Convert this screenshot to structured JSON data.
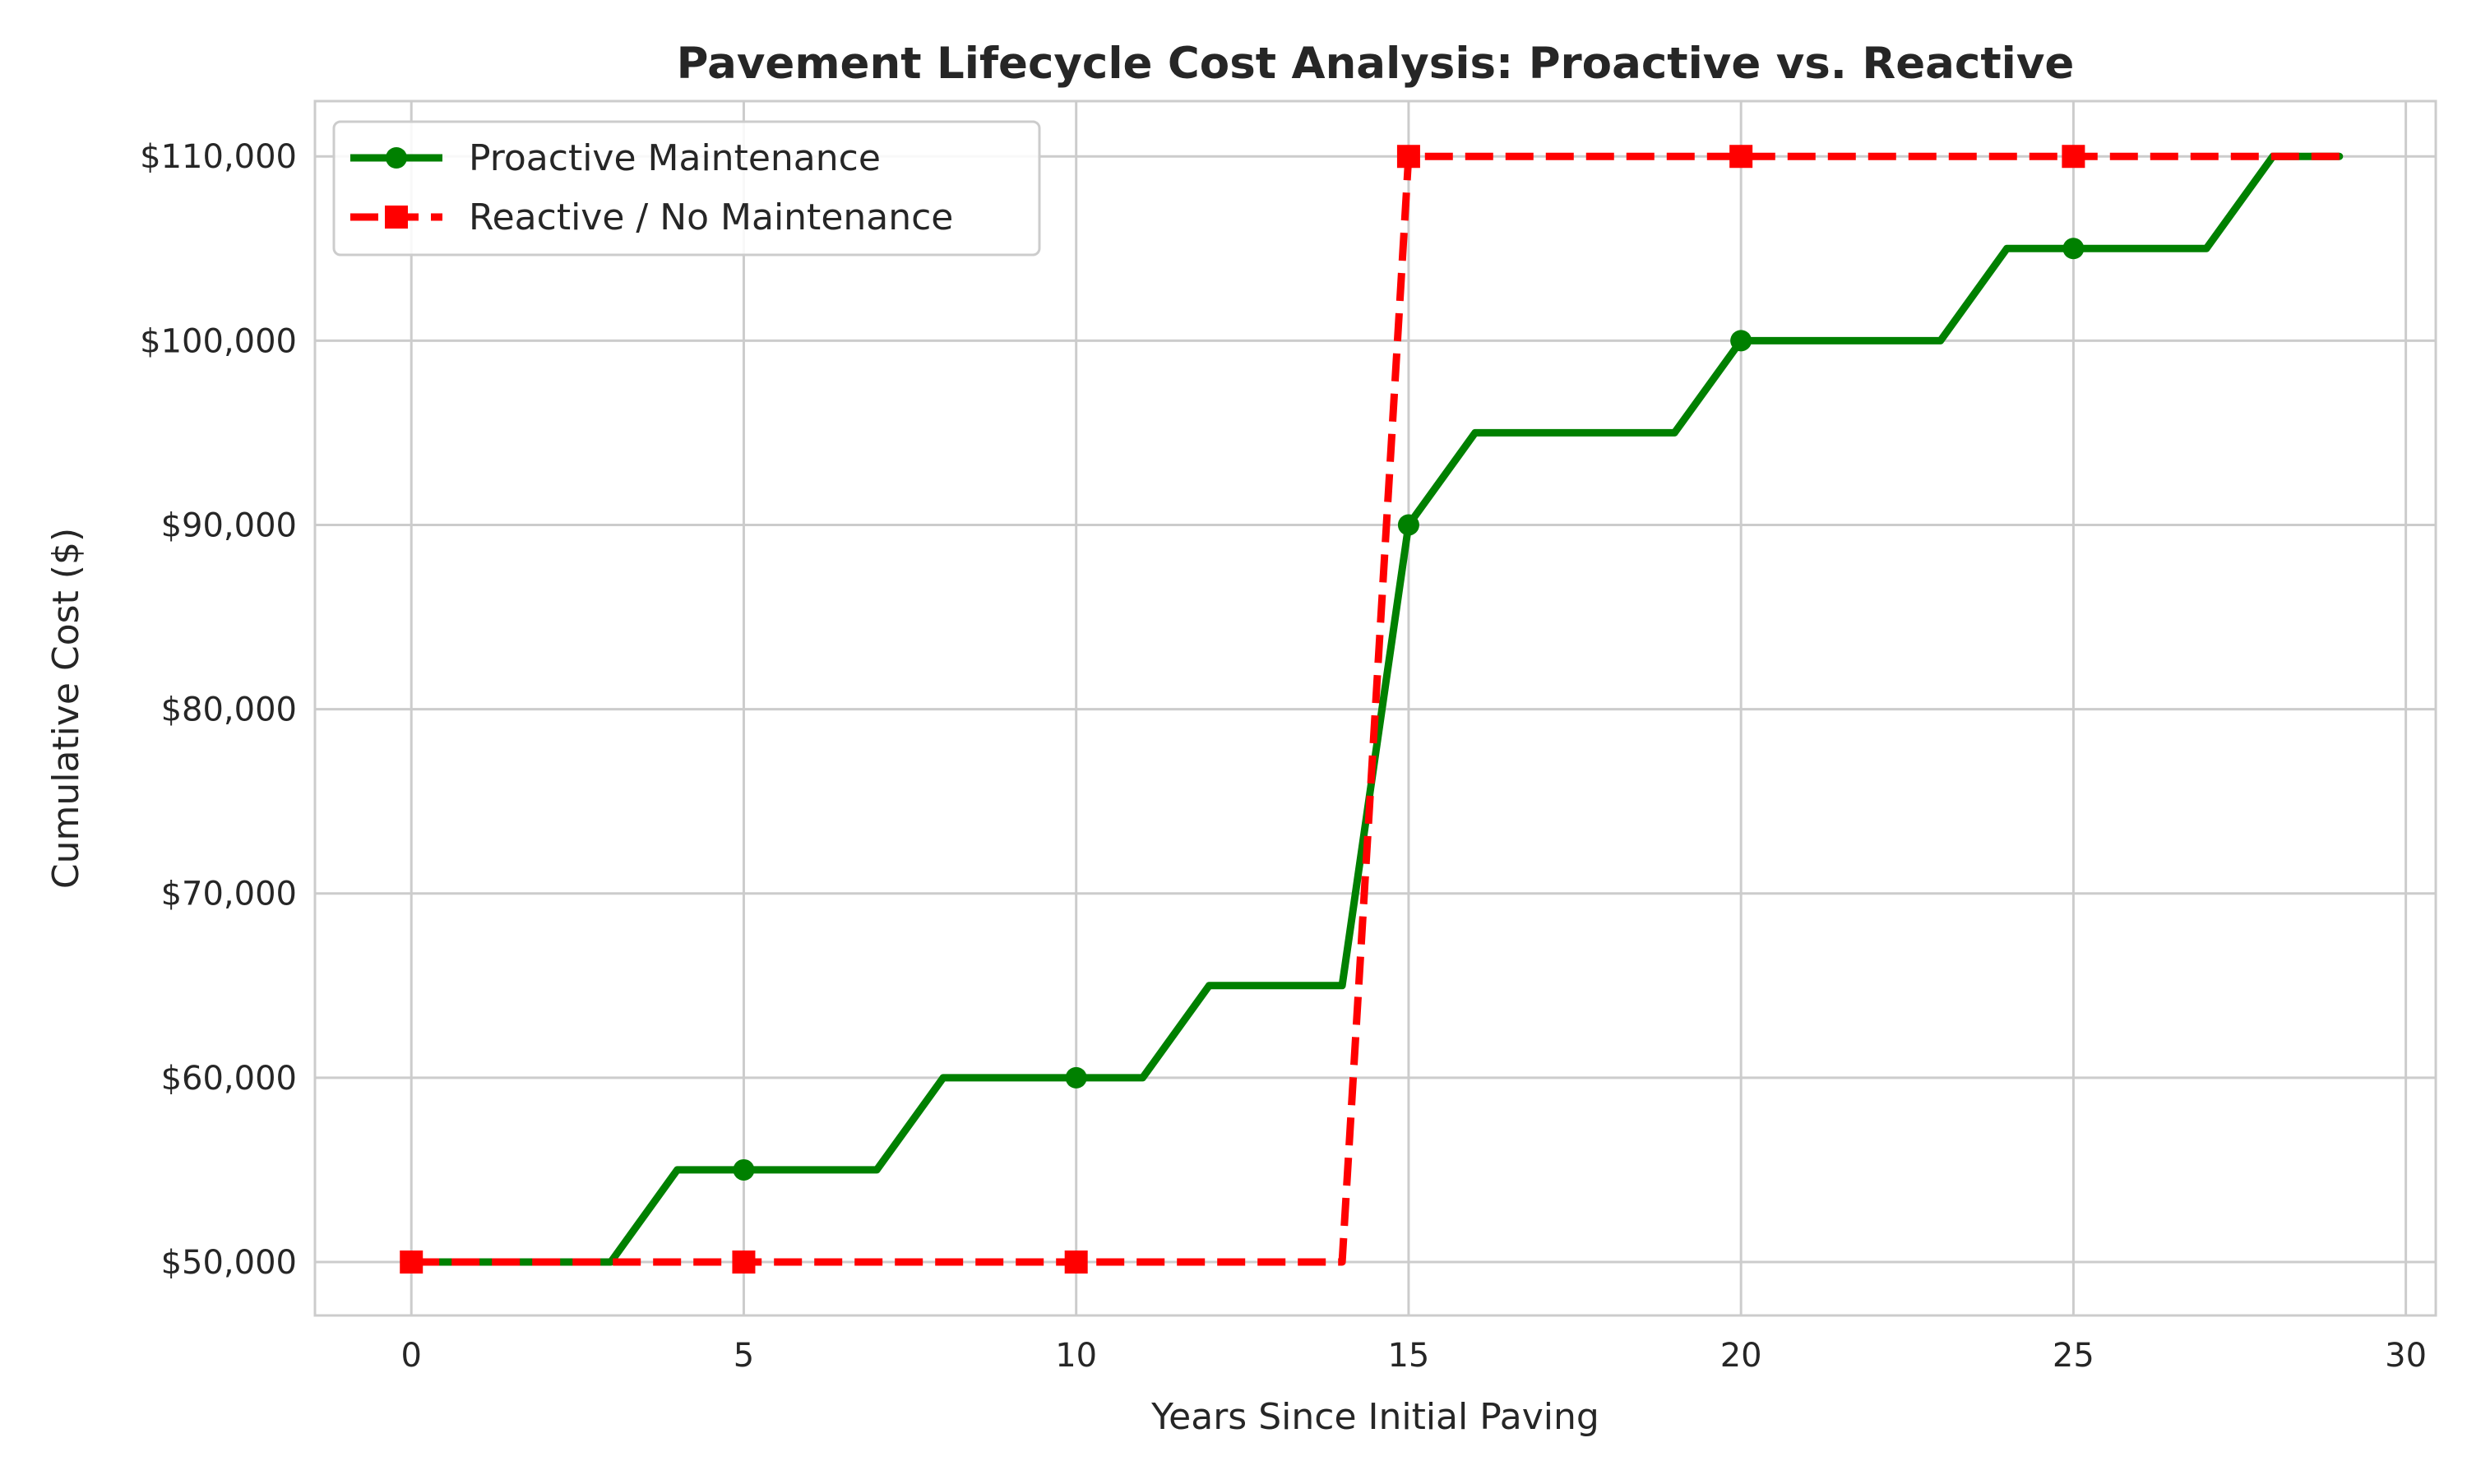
{
  "chart_data": {
    "type": "line",
    "title": "Pavement Lifecycle Cost Analysis: Proactive vs. Reactive",
    "xlabel": "Years Since Initial Paving",
    "ylabel": "Cumulative Cost ($)",
    "xlim": [
      -1.45,
      30.45
    ],
    "ylim": [
      47100,
      113000
    ],
    "x_ticks": [
      0,
      5,
      10,
      15,
      20,
      25,
      30
    ],
    "x_tick_labels": [
      "0",
      "5",
      "10",
      "15",
      "20",
      "25",
      "30"
    ],
    "y_ticks": [
      50000,
      60000,
      70000,
      80000,
      90000,
      100000,
      110000
    ],
    "y_tick_labels": [
      "$50,000",
      "$60,000",
      "$70,000",
      "$80,000",
      "$90,000",
      "$100,000",
      "$110,000"
    ],
    "grid": true,
    "legend_position": "top-left",
    "x": [
      0,
      1,
      2,
      3,
      4,
      5,
      6,
      7,
      8,
      9,
      10,
      11,
      12,
      13,
      14,
      15,
      16,
      17,
      18,
      19,
      20,
      21,
      22,
      23,
      24,
      25,
      26,
      27,
      28,
      29
    ],
    "series": [
      {
        "name": "Proactive Maintenance",
        "color": "#008000",
        "line_style": "solid",
        "marker": "circle",
        "marker_every": 5,
        "values": [
          50000,
          50000,
          50000,
          50000,
          55000,
          55000,
          55000,
          55000,
          60000,
          60000,
          60000,
          60000,
          65000,
          65000,
          65000,
          90000,
          95000,
          95000,
          95000,
          95000,
          100000,
          100000,
          100000,
          100000,
          105000,
          105000,
          105000,
          105000,
          110000,
          110000
        ]
      },
      {
        "name": "Reactive / No Maintenance",
        "color": "#ff0000",
        "line_style": "dashed",
        "marker": "square",
        "marker_every": 5,
        "values": [
          50000,
          50000,
          50000,
          50000,
          50000,
          50000,
          50000,
          50000,
          50000,
          50000,
          50000,
          50000,
          50000,
          50000,
          50000,
          110000,
          110000,
          110000,
          110000,
          110000,
          110000,
          110000,
          110000,
          110000,
          110000,
          110000,
          110000,
          110000,
          110000,
          110000
        ]
      }
    ]
  }
}
